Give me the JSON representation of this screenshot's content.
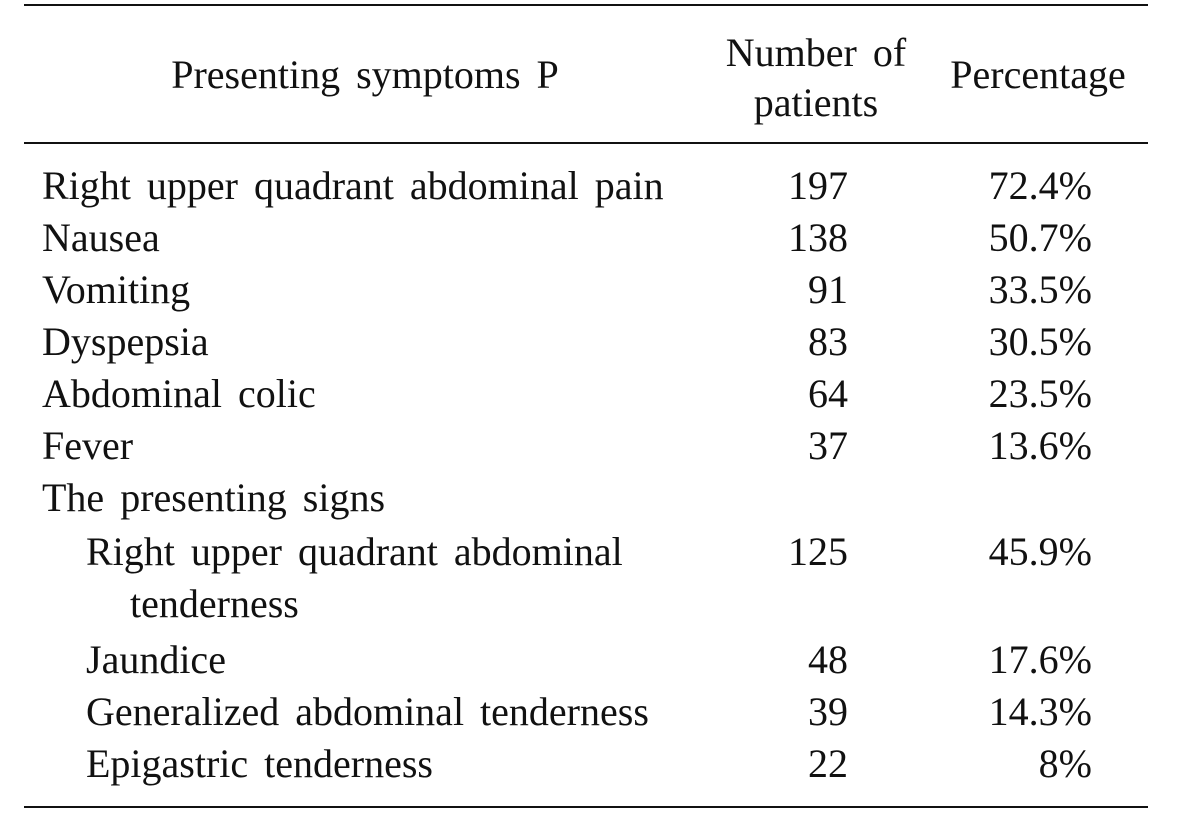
{
  "header": {
    "symptoms": "Presenting symptoms P",
    "number_line1": "Number of",
    "number_line2": "patients",
    "percentage": "Percentage"
  },
  "rows": [
    {
      "label": "Right upper quadrant abdominal pain",
      "number": "197",
      "percentage": "72.4%"
    },
    {
      "label": "Nausea",
      "number": "138",
      "percentage": "50.7%"
    },
    {
      "label": "Vomiting",
      "number": "91",
      "percentage": "33.5%"
    },
    {
      "label": "Dyspepsia",
      "number": "83",
      "percentage": "30.5%"
    },
    {
      "label": "Abdominal colic",
      "number": "64",
      "percentage": "23.5%"
    },
    {
      "label": "Fever",
      "number": "37",
      "percentage": "13.6%"
    }
  ],
  "signs_heading": "The presenting signs",
  "signs": [
    {
      "label_line1": "Right upper quadrant abdominal",
      "label_line2": "tenderness",
      "number": "125",
      "percentage": "45.9%"
    },
    {
      "label": "Jaundice",
      "number": "48",
      "percentage": "17.6%"
    },
    {
      "label": "Generalized abdominal tenderness",
      "number": "39",
      "percentage": "14.3%"
    },
    {
      "label": "Epigastric tenderness",
      "number": "22",
      "percentage": "8%"
    }
  ]
}
